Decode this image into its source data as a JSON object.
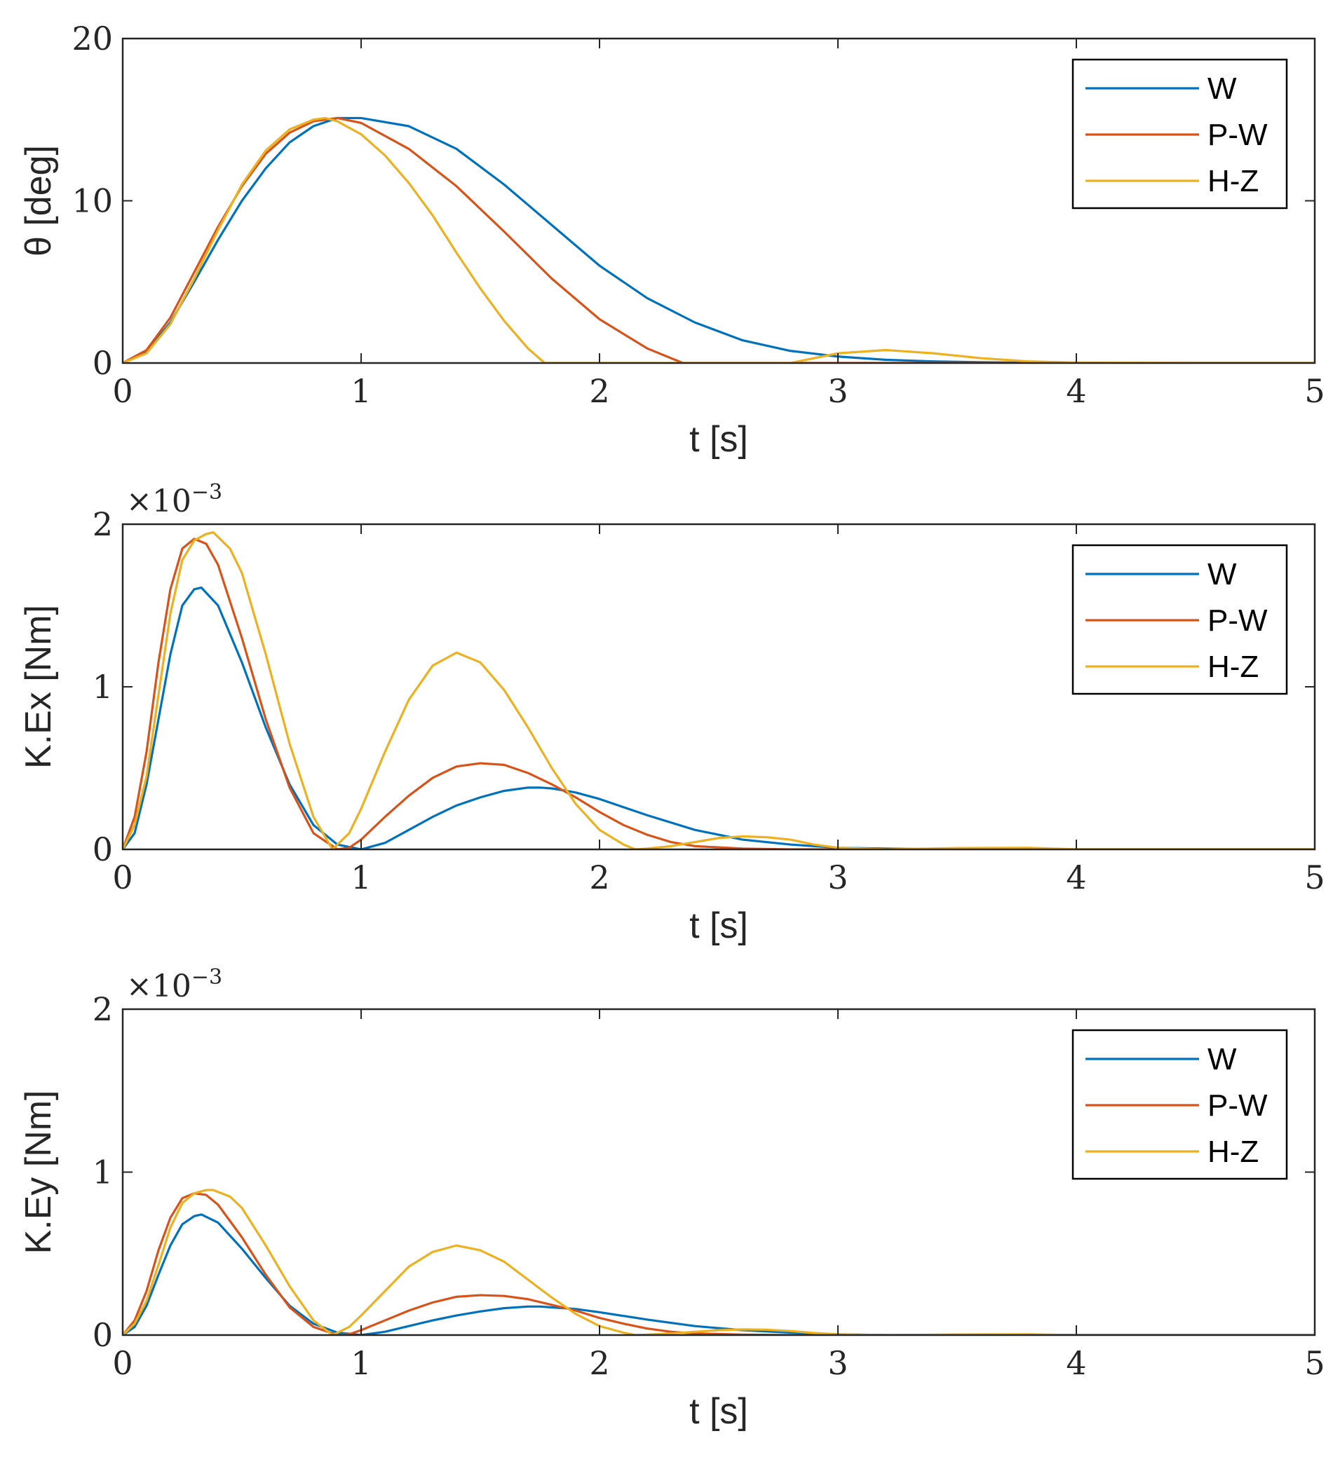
{
  "colors": {
    "W": "#0072bd",
    "P-W": "#d95319",
    "H-Z": "#edb120",
    "axis": "#262626"
  },
  "chart_data": [
    {
      "type": "line",
      "xlabel": "t [s]",
      "ylabel": "θ [deg]",
      "xlim": [
        0,
        5
      ],
      "ylim": [
        0,
        20
      ],
      "xticks": [
        "0",
        "1",
        "2",
        "3",
        "4",
        "5"
      ],
      "yticks": [
        "0",
        "10",
        "20"
      ],
      "multiplier": null,
      "legend": {
        "position": "top-right",
        "entries": [
          "W",
          "P-W",
          "H-Z"
        ]
      },
      "series": [
        {
          "name": "W",
          "x": [
            0,
            0.1,
            0.2,
            0.3,
            0.4,
            0.5,
            0.6,
            0.7,
            0.8,
            0.9,
            1.0,
            1.2,
            1.4,
            1.6,
            1.8,
            2.0,
            2.2,
            2.4,
            2.6,
            2.8,
            3.0,
            3.2,
            3.4,
            3.6,
            3.8,
            4.0,
            4.5,
            5.0
          ],
          "y": [
            0,
            0.7,
            2.5,
            5.0,
            7.6,
            10.0,
            12.0,
            13.6,
            14.6,
            15.1,
            15.1,
            14.6,
            13.2,
            11.0,
            8.5,
            6.0,
            4.0,
            2.5,
            1.4,
            0.75,
            0.4,
            0.2,
            0.1,
            0.05,
            0.02,
            0.01,
            0,
            0
          ]
        },
        {
          "name": "P-W",
          "x": [
            0,
            0.1,
            0.2,
            0.3,
            0.4,
            0.5,
            0.6,
            0.7,
            0.8,
            0.9,
            1.0,
            1.2,
            1.4,
            1.6,
            1.8,
            2.0,
            2.2,
            2.35,
            3.0,
            4.0,
            5.0
          ],
          "y": [
            0,
            0.8,
            2.8,
            5.6,
            8.4,
            10.9,
            12.9,
            14.2,
            14.9,
            15.1,
            14.8,
            13.2,
            10.9,
            8.1,
            5.2,
            2.7,
            0.9,
            0,
            0,
            0,
            0
          ]
        },
        {
          "name": "H-Z",
          "x": [
            0,
            0.1,
            0.2,
            0.3,
            0.4,
            0.5,
            0.6,
            0.7,
            0.8,
            0.85,
            0.9,
            1.0,
            1.1,
            1.2,
            1.3,
            1.4,
            1.5,
            1.6,
            1.7,
            1.77,
            2.8,
            3.0,
            3.2,
            3.4,
            3.6,
            3.8,
            4.0,
            4.5,
            5.0
          ],
          "y": [
            0,
            0.6,
            2.4,
            5.2,
            8.2,
            11.0,
            13.1,
            14.4,
            15.0,
            15.1,
            14.9,
            14.1,
            12.8,
            11.1,
            9.1,
            6.8,
            4.6,
            2.6,
            0.9,
            0,
            0,
            0.6,
            0.8,
            0.6,
            0.3,
            0.1,
            0.03,
            0,
            0
          ]
        }
      ]
    },
    {
      "type": "line",
      "xlabel": "t [s]",
      "ylabel": "K.Ex [Nm]",
      "xlim": [
        0,
        5
      ],
      "ylim": [
        0,
        2
      ],
      "xticks": [
        "0",
        "1",
        "2",
        "3",
        "4",
        "5"
      ],
      "yticks": [
        "0",
        "1",
        "2"
      ],
      "multiplier": {
        "base": "×10",
        "exponent": "−3"
      },
      "legend": {
        "position": "top-right",
        "entries": [
          "W",
          "P-W",
          "H-Z"
        ]
      },
      "series": [
        {
          "name": "W",
          "x": [
            0,
            0.05,
            0.1,
            0.15,
            0.2,
            0.25,
            0.3,
            0.33,
            0.4,
            0.5,
            0.6,
            0.7,
            0.8,
            0.9,
            1.0,
            1.1,
            1.2,
            1.3,
            1.4,
            1.5,
            1.6,
            1.7,
            1.75,
            1.8,
            1.9,
            2.0,
            2.2,
            2.4,
            2.6,
            2.8,
            3.0,
            3.2,
            3.5,
            4.0,
            5.0
          ],
          "y": [
            0,
            0.1,
            0.4,
            0.8,
            1.2,
            1.5,
            1.6,
            1.61,
            1.5,
            1.15,
            0.75,
            0.4,
            0.15,
            0.03,
            0,
            0.04,
            0.12,
            0.2,
            0.27,
            0.32,
            0.36,
            0.38,
            0.38,
            0.375,
            0.35,
            0.31,
            0.21,
            0.12,
            0.06,
            0.03,
            0.01,
            0.005,
            0,
            0,
            0
          ]
        },
        {
          "name": "P-W",
          "x": [
            0,
            0.05,
            0.1,
            0.15,
            0.2,
            0.25,
            0.3,
            0.35,
            0.4,
            0.5,
            0.6,
            0.7,
            0.8,
            0.9,
            0.95,
            1.0,
            1.1,
            1.2,
            1.3,
            1.4,
            1.5,
            1.6,
            1.7,
            1.8,
            1.9,
            2.0,
            2.1,
            2.2,
            2.3,
            2.4,
            2.6,
            2.8,
            3.0,
            4.0,
            5.0
          ],
          "y": [
            0,
            0.2,
            0.6,
            1.15,
            1.6,
            1.85,
            1.91,
            1.88,
            1.75,
            1.3,
            0.8,
            0.38,
            0.1,
            0,
            0.01,
            0.06,
            0.2,
            0.33,
            0.44,
            0.51,
            0.53,
            0.52,
            0.47,
            0.4,
            0.32,
            0.23,
            0.15,
            0.09,
            0.045,
            0.02,
            0.005,
            0,
            0,
            0,
            0
          ]
        },
        {
          "name": "H-Z",
          "x": [
            0,
            0.05,
            0.1,
            0.15,
            0.2,
            0.25,
            0.3,
            0.35,
            0.38,
            0.45,
            0.5,
            0.6,
            0.7,
            0.8,
            0.88,
            0.95,
            1.0,
            1.1,
            1.2,
            1.3,
            1.4,
            1.5,
            1.6,
            1.7,
            1.8,
            1.9,
            2.0,
            2.1,
            2.15,
            2.2,
            2.3,
            2.4,
            2.5,
            2.6,
            2.7,
            2.8,
            2.9,
            3.0,
            3.2,
            3.5,
            3.8,
            4.0,
            5.0
          ],
          "y": [
            0,
            0.15,
            0.45,
            0.95,
            1.45,
            1.78,
            1.9,
            1.94,
            1.95,
            1.85,
            1.7,
            1.2,
            0.65,
            0.2,
            0,
            0.1,
            0.25,
            0.6,
            0.92,
            1.13,
            1.21,
            1.15,
            0.98,
            0.75,
            0.5,
            0.28,
            0.12,
            0.03,
            0,
            0.005,
            0.02,
            0.045,
            0.07,
            0.08,
            0.075,
            0.06,
            0.03,
            0.01,
            0,
            0.008,
            0.01,
            0,
            0
          ]
        }
      ]
    },
    {
      "type": "line",
      "xlabel": "t [s]",
      "ylabel": "K.Ey [Nm]",
      "xlim": [
        0,
        5
      ],
      "ylim": [
        0,
        2
      ],
      "xticks": [
        "0",
        "1",
        "2",
        "3",
        "4",
        "5"
      ],
      "yticks": [
        "0",
        "1",
        "2"
      ],
      "multiplier": {
        "base": "×10",
        "exponent": "−3"
      },
      "legend": {
        "position": "top-right",
        "entries": [
          "W",
          "P-W",
          "H-Z"
        ]
      },
      "series": [
        {
          "name": "W",
          "x": [
            0,
            0.05,
            0.1,
            0.15,
            0.2,
            0.25,
            0.3,
            0.33,
            0.4,
            0.5,
            0.6,
            0.7,
            0.8,
            0.9,
            1.0,
            1.1,
            1.2,
            1.3,
            1.4,
            1.5,
            1.6,
            1.7,
            1.75,
            1.8,
            1.9,
            2.0,
            2.2,
            2.4,
            2.6,
            2.8,
            3.0,
            3.2,
            3.5,
            4.0,
            5.0
          ],
          "y": [
            0,
            0.05,
            0.18,
            0.37,
            0.55,
            0.68,
            0.73,
            0.74,
            0.69,
            0.53,
            0.35,
            0.18,
            0.07,
            0.015,
            0,
            0.02,
            0.055,
            0.09,
            0.12,
            0.145,
            0.165,
            0.175,
            0.175,
            0.17,
            0.16,
            0.14,
            0.095,
            0.055,
            0.03,
            0.015,
            0.005,
            0,
            0,
            0,
            0
          ]
        },
        {
          "name": "P-W",
          "x": [
            0,
            0.05,
            0.1,
            0.15,
            0.2,
            0.25,
            0.3,
            0.35,
            0.4,
            0.5,
            0.6,
            0.7,
            0.8,
            0.9,
            0.95,
            1.0,
            1.1,
            1.2,
            1.3,
            1.4,
            1.5,
            1.6,
            1.7,
            1.8,
            1.9,
            2.0,
            2.1,
            2.2,
            2.3,
            2.4,
            2.6,
            2.8,
            3.0,
            4.0,
            5.0
          ],
          "y": [
            0,
            0.09,
            0.27,
            0.52,
            0.72,
            0.84,
            0.87,
            0.86,
            0.8,
            0.6,
            0.37,
            0.17,
            0.05,
            0,
            0.005,
            0.03,
            0.09,
            0.15,
            0.2,
            0.235,
            0.245,
            0.24,
            0.22,
            0.185,
            0.15,
            0.105,
            0.07,
            0.04,
            0.02,
            0.01,
            0.003,
            0,
            0,
            0,
            0
          ]
        },
        {
          "name": "H-Z",
          "x": [
            0,
            0.05,
            0.1,
            0.15,
            0.2,
            0.25,
            0.3,
            0.35,
            0.38,
            0.45,
            0.5,
            0.6,
            0.7,
            0.8,
            0.88,
            0.95,
            1.0,
            1.1,
            1.2,
            1.3,
            1.4,
            1.5,
            1.6,
            1.7,
            1.8,
            1.9,
            2.0,
            2.1,
            2.15,
            2.2,
            2.3,
            2.4,
            2.5,
            2.6,
            2.7,
            2.8,
            2.9,
            3.0,
            3.2,
            3.5,
            3.8,
            4.0,
            5.0
          ],
          "y": [
            0,
            0.07,
            0.21,
            0.43,
            0.66,
            0.81,
            0.87,
            0.89,
            0.89,
            0.85,
            0.78,
            0.55,
            0.3,
            0.09,
            0,
            0.05,
            0.12,
            0.27,
            0.42,
            0.51,
            0.55,
            0.52,
            0.45,
            0.34,
            0.23,
            0.13,
            0.055,
            0.015,
            0,
            0.003,
            0.01,
            0.02,
            0.03,
            0.035,
            0.033,
            0.025,
            0.013,
            0.005,
            0,
            0.004,
            0.005,
            0,
            0
          ]
        }
      ]
    }
  ]
}
